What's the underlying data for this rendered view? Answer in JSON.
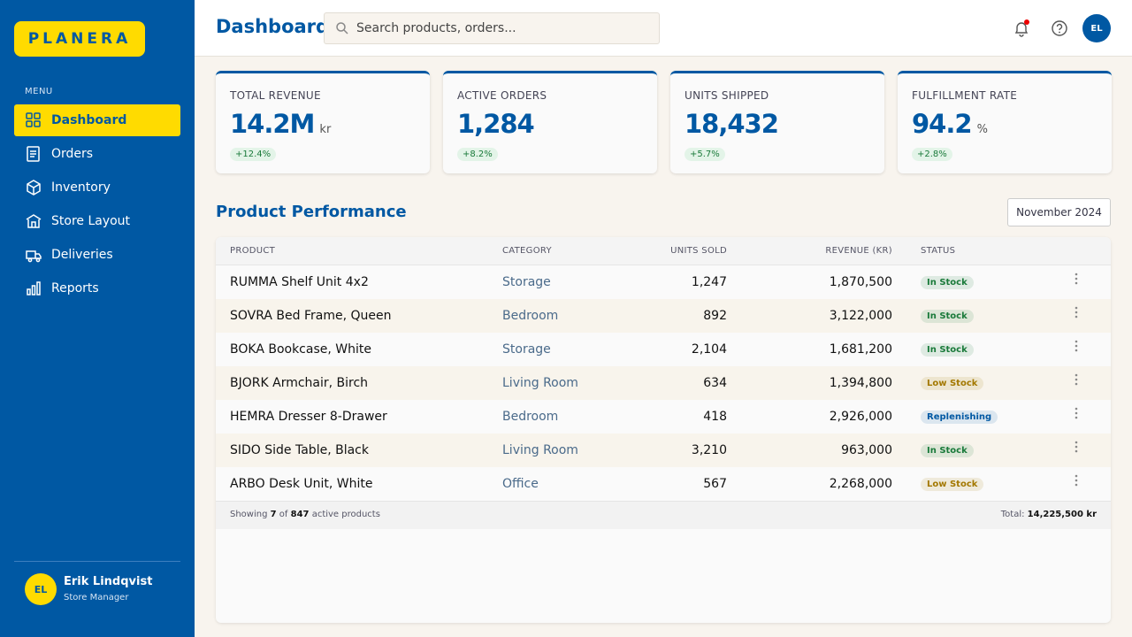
{
  "brand": "PLANERA",
  "sidebar": {
    "menu_label": "MENU",
    "items": [
      "Dashboard",
      "Orders",
      "Inventory",
      "Store Layout",
      "Deliveries",
      "Reports"
    ],
    "user": {
      "initials": "EL",
      "name": "Erik Lindqvist",
      "role": "Store Manager"
    }
  },
  "header": {
    "title": "Dashboard",
    "search_placeholder": "Search products, orders...",
    "avatar": "EL"
  },
  "kpis": [
    {
      "label": "TOTAL REVENUE",
      "value": "14.2M",
      "unit": "kr",
      "change": "+12.4%"
    },
    {
      "label": "ACTIVE ORDERS",
      "value": "1,284",
      "change": "+8.2%"
    },
    {
      "label": "UNITS SHIPPED",
      "value": "18,432",
      "change": "+5.7%"
    },
    {
      "label": "FULFILLMENT RATE",
      "value": "94.2",
      "unit": "%",
      "change": "+2.8%"
    }
  ],
  "section": {
    "title": "Product Performance",
    "period": "November 2024"
  },
  "table": {
    "columns": [
      "PRODUCT",
      "CATEGORY",
      "UNITS SOLD",
      "REVENUE (KR)",
      "STATUS"
    ],
    "rows": [
      {
        "product": "RUMMA Shelf Unit 4x2",
        "category": "Storage",
        "units_sold": "1,247",
        "revenue": "1,870,500",
        "status": "In Stock",
        "status_color": "#1a7a3a"
      },
      {
        "product": "SOVRA Bed Frame, Queen",
        "category": "Bedroom",
        "units_sold": "892",
        "revenue": "3,122,000",
        "status": "In Stock",
        "status_color": "#1a7a3a"
      },
      {
        "product": "BOKA Bookcase, White",
        "category": "Storage",
        "units_sold": "2,104",
        "revenue": "1,681,200",
        "status": "In Stock",
        "status_color": "#1a7a3a"
      },
      {
        "product": "BJORK Armchair, Birch",
        "category": "Living Room",
        "units_sold": "634",
        "revenue": "1,394,800",
        "status": "Low Stock",
        "status_color": "#a37800"
      },
      {
        "product": "HEMRA Dresser 8-Drawer",
        "category": "Bedroom",
        "units_sold": "418",
        "revenue": "2,926,000",
        "status": "Replenishing",
        "status_color": "#0058a3"
      },
      {
        "product": "SIDO Side Table, Black",
        "category": "Living Room",
        "units_sold": "3,210",
        "revenue": "963,000",
        "status": "In Stock",
        "status_color": "#1a7a3a"
      },
      {
        "product": "ARBO Desk Unit, White",
        "category": "Office",
        "units_sold": "567",
        "revenue": "2,268,000",
        "status": "Low Stock",
        "status_color": "#a37800"
      }
    ],
    "footer": {
      "showing": "Showing",
      "shown": "7",
      "of": "of",
      "count": "847",
      "suffix": "active products",
      "total_label": "Total:",
      "total_value": "14,225,500 kr"
    }
  }
}
